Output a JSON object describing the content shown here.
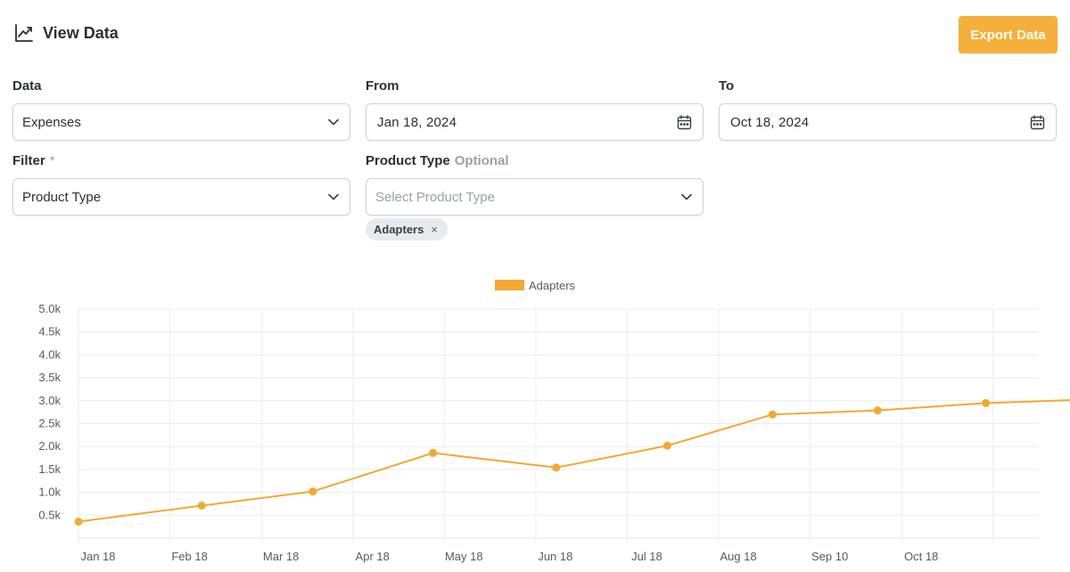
{
  "header": {
    "title": "View Data",
    "icon": "line-chart-icon"
  },
  "toolbar": {
    "export_label": "Export Data"
  },
  "form": {
    "data": {
      "label": "Data",
      "value": "Expenses"
    },
    "from": {
      "label": "From",
      "value": "Jan 18, 2024"
    },
    "to": {
      "label": "To",
      "value": "Oct 18, 2024"
    },
    "filter": {
      "label": "Filter",
      "required_mark": "*",
      "value": "Product Type"
    },
    "product_type": {
      "label": "Product Type",
      "optional_label": "Optional",
      "placeholder": "Select Product Type"
    },
    "chips": [
      {
        "label": "Adapters",
        "remove": "×"
      }
    ]
  },
  "colors": {
    "accent": "#f5b03b",
    "series": "#f2a933"
  },
  "chart_data": {
    "type": "line",
    "legend": "top-center",
    "grid": true,
    "x_tick_labels": [
      "Jan 18",
      "Feb 18",
      "Mar 18",
      "Apr 18",
      "May 18",
      "Jun 18",
      "Jul 18",
      "Aug 18",
      "Sep 10",
      "Oct 18"
    ],
    "y_tick_labels": [
      "0.5k",
      "1.0k",
      "1.5k",
      "2.0k",
      "2.5k",
      "3.0k",
      "3.5k",
      "4.0k",
      "4.5k",
      "5.0k"
    ],
    "ylim": [
      0,
      5000
    ],
    "series": [
      {
        "name": "Adapters",
        "color": "#f2a933",
        "x": [
          "2024-01-18",
          "2024-02-28",
          "2024-04-05",
          "2024-05-15",
          "2024-06-25",
          "2024-08-01",
          "2024-09-05",
          "2024-10-10",
          "2024-11-15",
          "2024-12-20"
        ],
        "values": [
          360,
          710,
          1020,
          1860,
          1540,
          2020,
          2700,
          2790,
          2950,
          3030
        ]
      }
    ]
  }
}
